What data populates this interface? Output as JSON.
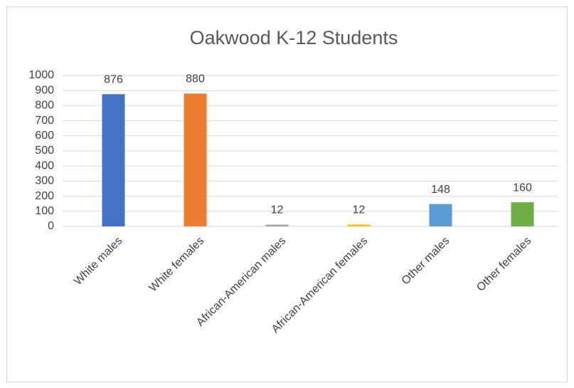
{
  "chart_data": {
    "type": "bar",
    "title": "Oakwood K-12 Students",
    "categories": [
      "White males",
      "White females",
      "African-American males",
      "African-American females",
      "Other males",
      "Other females"
    ],
    "values": [
      876,
      880,
      12,
      12,
      148,
      160
    ],
    "colors": [
      "#4472c4",
      "#ed7d31",
      "#a5a5a5",
      "#ffc000",
      "#5b9bd5",
      "#70ad47"
    ],
    "ylim": [
      0,
      1000
    ],
    "yticks": [
      0,
      100,
      200,
      300,
      400,
      500,
      600,
      700,
      800,
      900,
      1000
    ],
    "grid": true
  }
}
